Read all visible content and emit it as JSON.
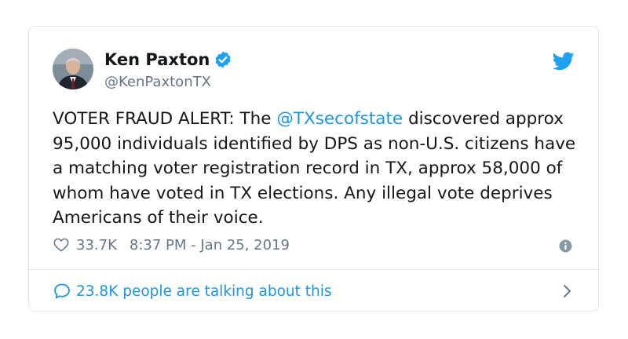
{
  "tweet": {
    "author": {
      "name": "Ken Paxton",
      "handle": "@KenPaxtonTX",
      "verified": true
    },
    "text_segments": {
      "before_mention": "VOTER FRAUD ALERT: The ",
      "mention": "@TXsecofstate",
      "after_mention": " discovered approx 95,000 individuals identified by DPS as non-U.S. citizens have a matching voter registration record in TX, approx 58,000 of whom have voted in TX elections. Any illegal vote deprives Americans of their voice."
    },
    "likes": "33.7K",
    "timestamp": "8:37 PM - Jan 25, 2019",
    "talking": "23.8K people are talking about this"
  },
  "icons": {
    "avatar": "avatar",
    "verified": "verified-badge-icon",
    "brand": "twitter-bird-icon",
    "like": "heart-icon",
    "info": "info-icon",
    "conversation": "speech-bubble-icon",
    "chevron": "chevron-right-icon"
  },
  "colors": {
    "accent": "#1da1f2",
    "link": "#1b95e0",
    "secondary_text": "#657786",
    "border": "#e1e8ed",
    "text": "#14171a"
  }
}
